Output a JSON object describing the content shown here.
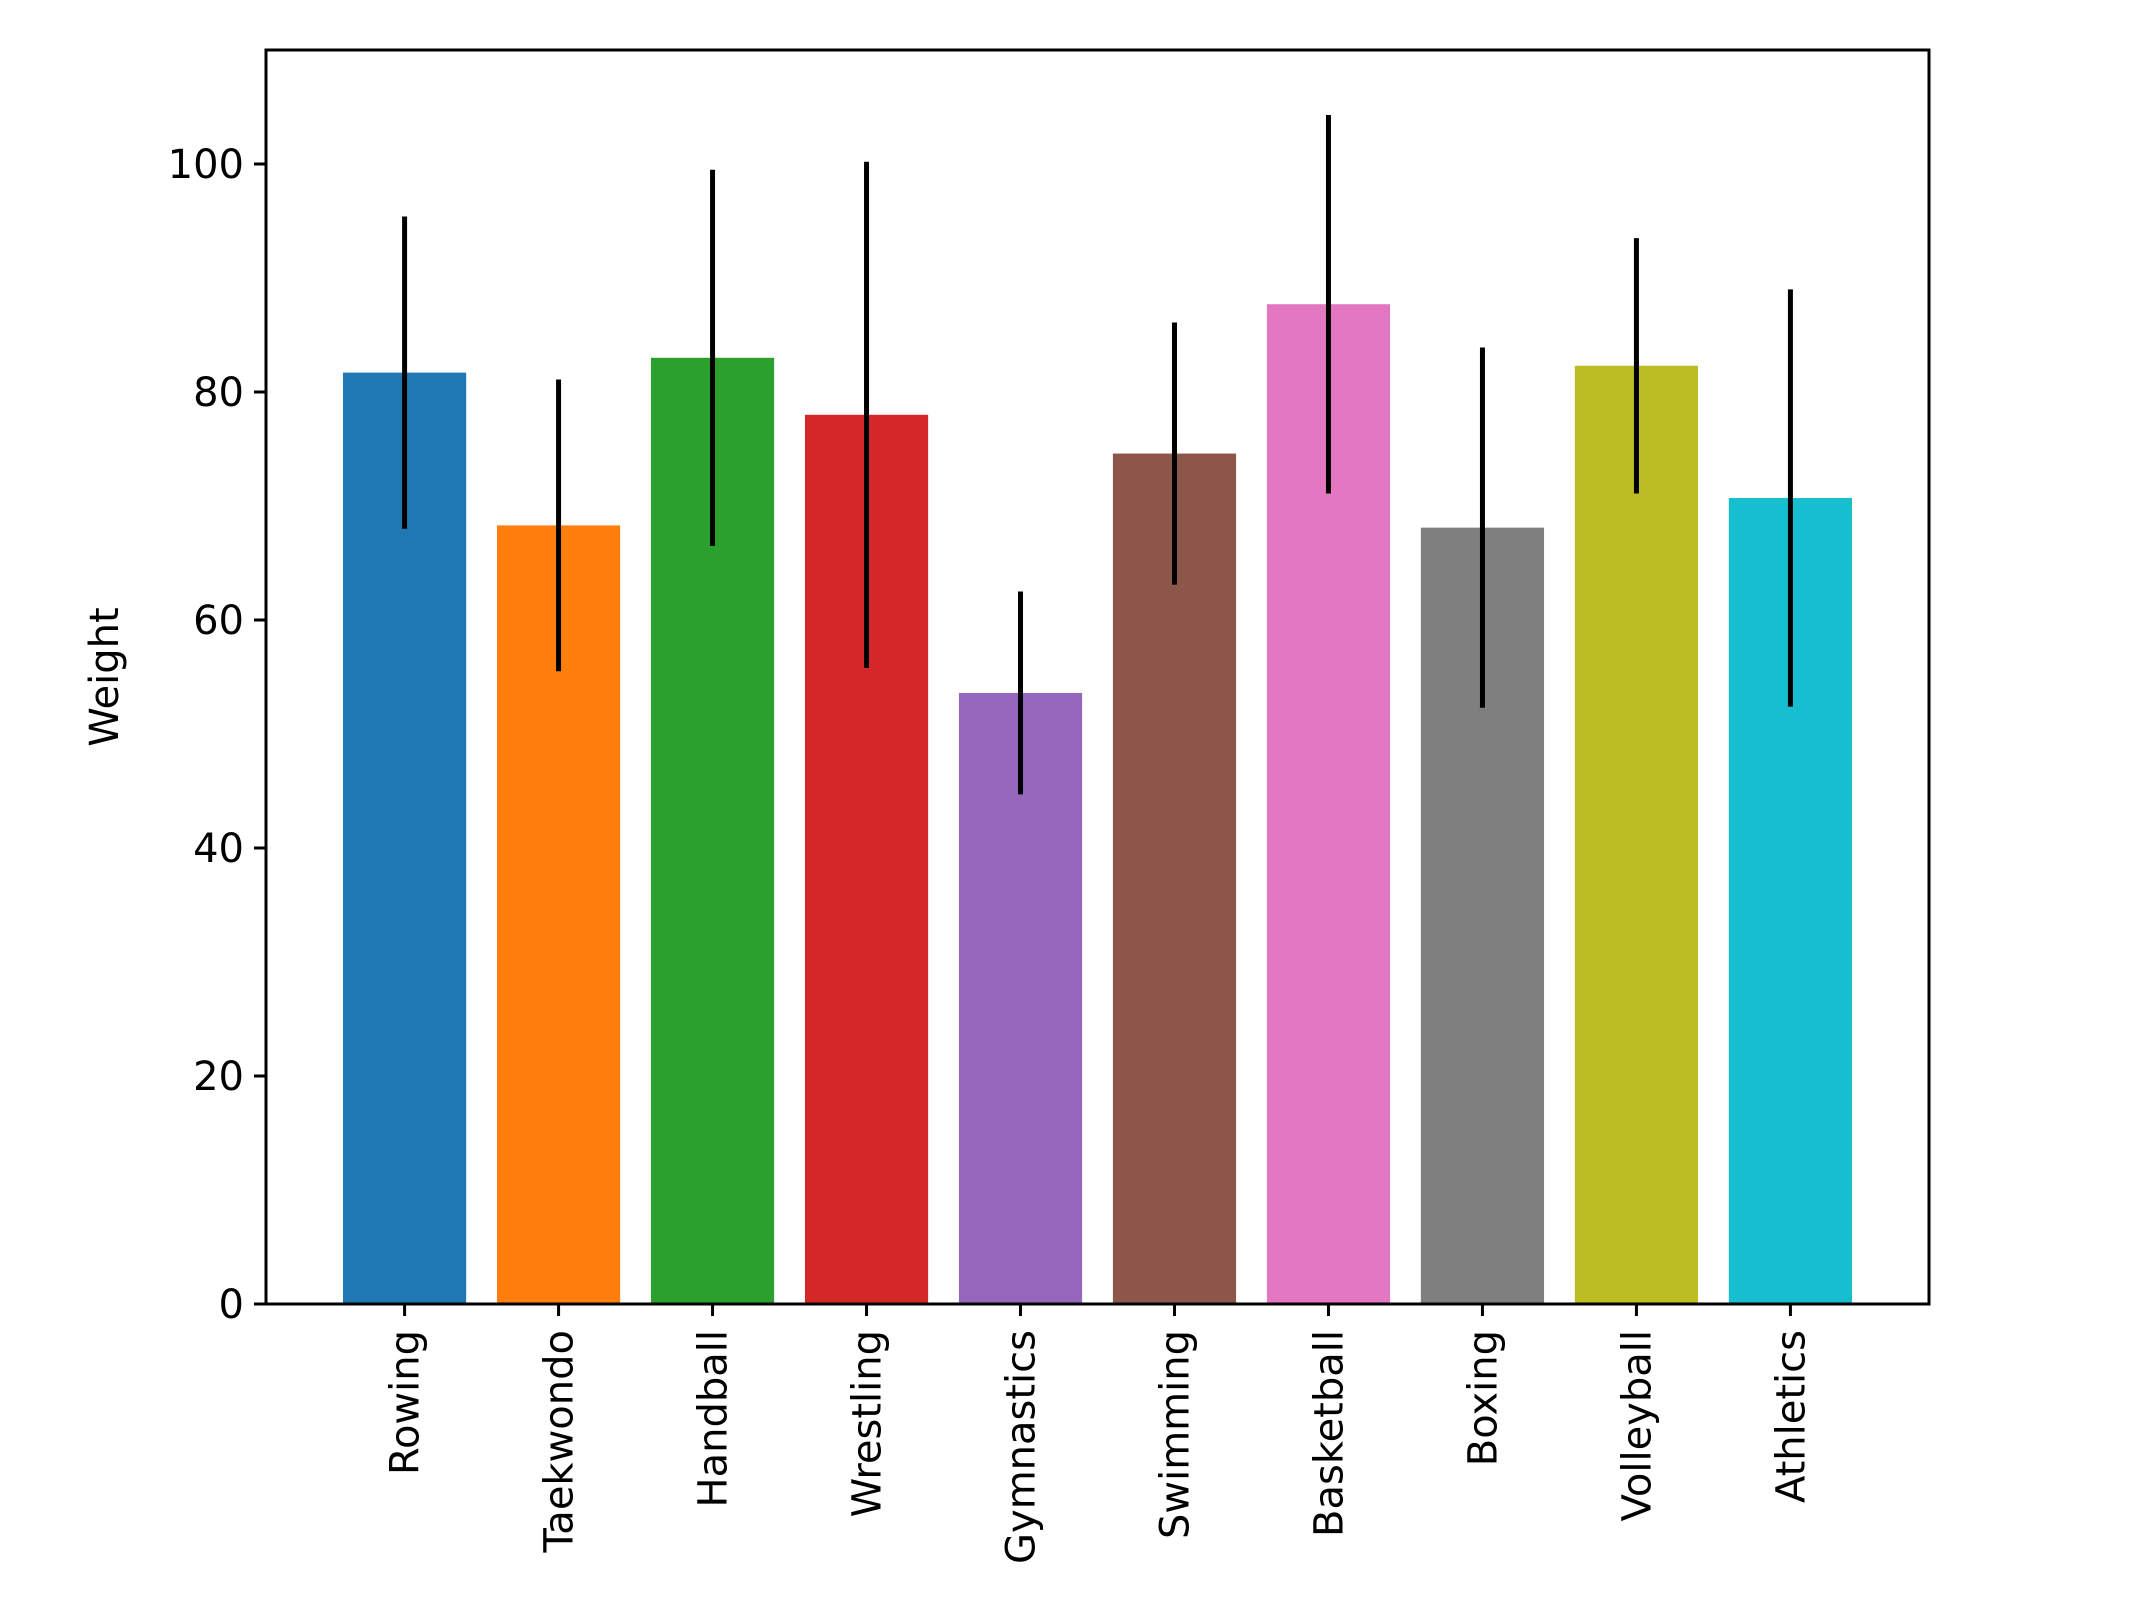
{
  "chart_data": {
    "type": "bar",
    "title": "",
    "xlabel": "",
    "ylabel": "Weight",
    "ylim": [
      0,
      110
    ],
    "yticks": [
      0,
      20,
      40,
      60,
      80,
      100
    ],
    "ytick_labels": [
      "0",
      "20",
      "40",
      "60",
      "80",
      "100"
    ],
    "grid": false,
    "categories": [
      "Rowing",
      "Taekwondo",
      "Handball",
      "Wrestling",
      "Gymnastics",
      "Swimming",
      "Basketball",
      "Boxing",
      "Volleyball",
      "Athletics"
    ],
    "values": [
      81.7,
      68.3,
      83.0,
      78.0,
      53.6,
      74.6,
      87.7,
      68.1,
      82.3,
      70.7
    ],
    "errors": [
      13.7,
      12.8,
      16.5,
      22.2,
      8.9,
      11.5,
      16.6,
      15.8,
      11.2,
      18.3
    ],
    "colors": [
      "#1f77b4",
      "#ff7f0e",
      "#2ca02c",
      "#d62728",
      "#9467bd",
      "#8c564b",
      "#e377c2",
      "#7f7f7f",
      "#bcbd22",
      "#17becf"
    ]
  }
}
